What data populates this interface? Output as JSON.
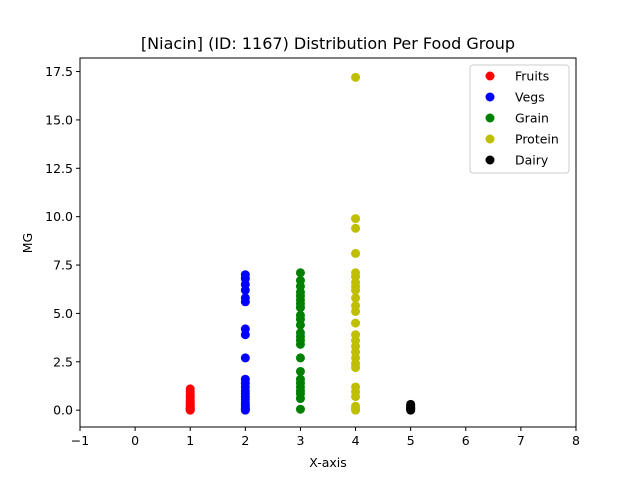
{
  "chart_data": {
    "type": "scatter",
    "title": "[Niacin] (ID: 1167) Distribution Per Food Group",
    "xlabel": "X-axis",
    "ylabel": "MG",
    "xlim": [
      -1,
      8
    ],
    "ylim": [
      -0.87,
      18.2
    ],
    "xticks": [
      -1,
      0,
      1,
      2,
      3,
      4,
      5,
      6,
      7,
      8
    ],
    "xtick_labels": [
      "−1",
      "0",
      "1",
      "2",
      "3",
      "4",
      "5",
      "6",
      "7",
      "8"
    ],
    "yticks": [
      0,
      2.5,
      5,
      7.5,
      10,
      12.5,
      15,
      17.5
    ],
    "ytick_labels": [
      "0.0",
      "2.5",
      "5.0",
      "7.5",
      "10.0",
      "12.5",
      "15.0",
      "17.5"
    ],
    "grid": false,
    "legend_position": "top-right",
    "series": [
      {
        "name": "Fruits",
        "color": "#ff0000",
        "points": [
          [
            1,
            1.1
          ],
          [
            1,
            0.95
          ],
          [
            1,
            0.8
          ],
          [
            1,
            0.7
          ],
          [
            1,
            0.6
          ],
          [
            1,
            0.5
          ],
          [
            1,
            0.42
          ],
          [
            1,
            0.35
          ],
          [
            1,
            0.3
          ],
          [
            1,
            0.25
          ],
          [
            1,
            0.2
          ],
          [
            1,
            0.15
          ],
          [
            1,
            0.1
          ],
          [
            1,
            0.07
          ],
          [
            1,
            0.04
          ],
          [
            1,
            0.02
          ],
          [
            1,
            0.0
          ]
        ]
      },
      {
        "name": "Vegs",
        "color": "#0000ff",
        "points": [
          [
            2,
            7.0
          ],
          [
            2,
            6.8
          ],
          [
            2,
            6.5
          ],
          [
            2,
            6.2
          ],
          [
            2,
            5.8
          ],
          [
            2,
            5.6
          ],
          [
            2,
            4.2
          ],
          [
            2,
            3.9
          ],
          [
            2,
            2.7
          ],
          [
            2,
            1.6
          ],
          [
            2,
            1.4
          ],
          [
            2,
            1.2
          ],
          [
            2,
            1.0
          ],
          [
            2,
            0.85
          ],
          [
            2,
            0.7
          ],
          [
            2,
            0.55
          ],
          [
            2,
            0.4
          ],
          [
            2,
            0.3
          ],
          [
            2,
            0.2
          ],
          [
            2,
            0.1
          ],
          [
            2,
            0.05
          ],
          [
            2,
            0.0
          ]
        ]
      },
      {
        "name": "Grain",
        "color": "#008000",
        "points": [
          [
            3,
            7.1
          ],
          [
            3,
            6.7
          ],
          [
            3,
            6.4
          ],
          [
            3,
            6.1
          ],
          [
            3,
            5.9
          ],
          [
            3,
            5.7
          ],
          [
            3,
            5.5
          ],
          [
            3,
            5.3
          ],
          [
            3,
            4.9
          ],
          [
            3,
            4.7
          ],
          [
            3,
            4.4
          ],
          [
            3,
            4.0
          ],
          [
            3,
            3.8
          ],
          [
            3,
            3.6
          ],
          [
            3,
            3.4
          ],
          [
            3,
            2.7
          ],
          [
            3,
            2.0
          ],
          [
            3,
            1.6
          ],
          [
            3,
            1.4
          ],
          [
            3,
            1.2
          ],
          [
            3,
            1.0
          ],
          [
            3,
            0.85
          ],
          [
            3,
            0.6
          ],
          [
            3,
            0.05
          ]
        ]
      },
      {
        "name": "Protein",
        "color": "#bfbf00",
        "points": [
          [
            4,
            17.2
          ],
          [
            4,
            9.9
          ],
          [
            4,
            9.4
          ],
          [
            4,
            8.1
          ],
          [
            4,
            7.1
          ],
          [
            4,
            6.9
          ],
          [
            4,
            6.6
          ],
          [
            4,
            6.4
          ],
          [
            4,
            6.2
          ],
          [
            4,
            5.8
          ],
          [
            4,
            5.4
          ],
          [
            4,
            5.1
          ],
          [
            4,
            4.5
          ],
          [
            4,
            3.9
          ],
          [
            4,
            3.6
          ],
          [
            4,
            3.3
          ],
          [
            4,
            3.0
          ],
          [
            4,
            2.7
          ],
          [
            4,
            2.4
          ],
          [
            4,
            2.2
          ],
          [
            4,
            1.2
          ],
          [
            4,
            0.95
          ],
          [
            4,
            0.7
          ],
          [
            4,
            0.2
          ],
          [
            4,
            0.05
          ],
          [
            4,
            0.0
          ]
        ]
      },
      {
        "name": "Dairy",
        "color": "#000000",
        "points": [
          [
            5,
            0.3
          ],
          [
            5,
            0.25
          ],
          [
            5,
            0.2
          ],
          [
            5,
            0.15
          ],
          [
            5,
            0.1
          ],
          [
            5,
            0.07
          ],
          [
            5,
            0.04
          ],
          [
            5,
            0.0
          ]
        ]
      }
    ]
  }
}
